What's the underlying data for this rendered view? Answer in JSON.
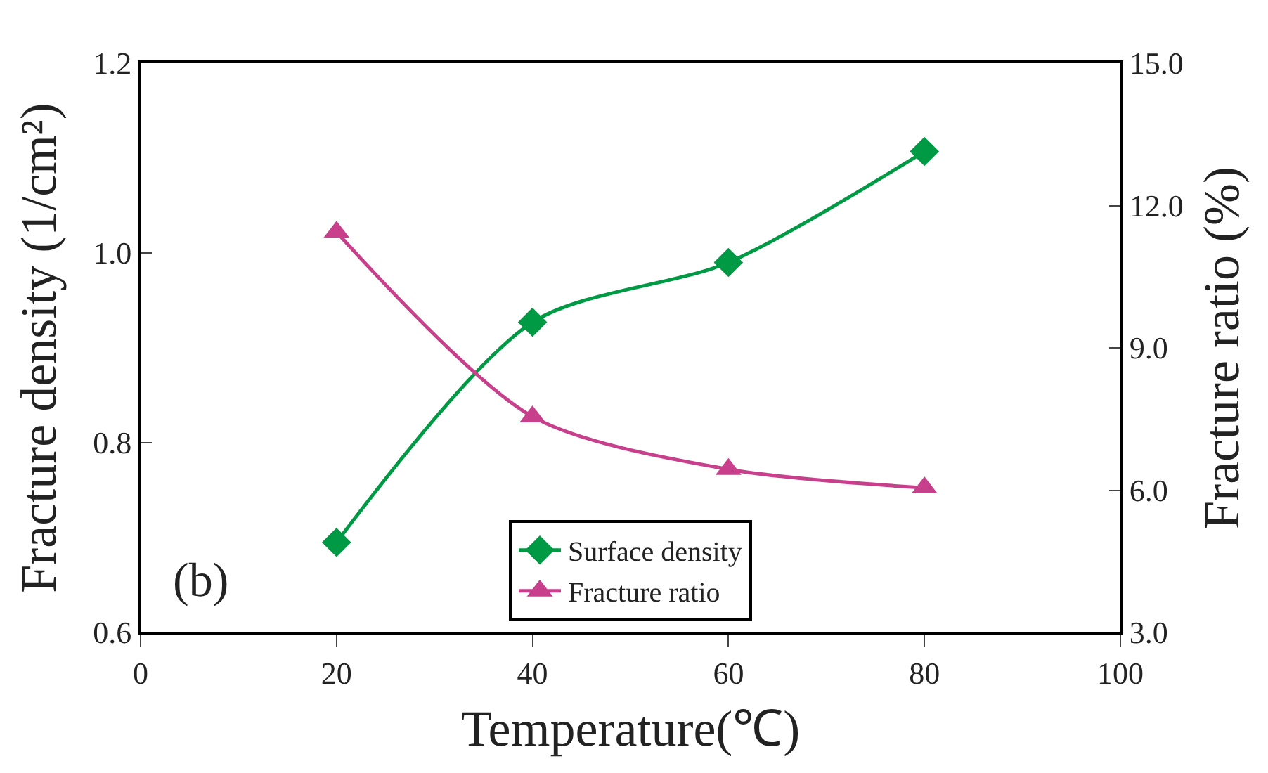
{
  "chart_data": {
    "type": "line",
    "xlabel": "Temperature(℃)",
    "ylabel": "Fracture density (1/cm²)",
    "y2label": "Fracture ratio (%)",
    "x": [
      20,
      40,
      60,
      80
    ],
    "series": [
      {
        "name": "Surface density",
        "color": "#009a44",
        "values": [
          0.695,
          0.927,
          0.99,
          1.107
        ],
        "marker": "diamond"
      },
      {
        "name": "Fracture ratio",
        "color": "#c8408c",
        "values": [
          11.44,
          7.55,
          6.44,
          6.05
        ],
        "marker": "triangle",
        "axis": "y2"
      }
    ],
    "xlim": [
      0,
      100
    ],
    "xticks": [
      0,
      20,
      40,
      60,
      80,
      100
    ],
    "ylim": [
      0.6,
      1.2
    ],
    "yticks": [
      {
        "value": 0.6,
        "label": "0.6"
      },
      {
        "value": 0.8,
        "label": "0.8"
      },
      {
        "value": 1.0,
        "label": "1.0"
      },
      {
        "value": 1.2,
        "label": "1.2"
      }
    ],
    "y2lim": [
      3,
      15
    ],
    "y2ticks": [
      {
        "value": 3,
        "label": "3.0"
      },
      {
        "value": 6,
        "label": "6.0"
      },
      {
        "value": 9,
        "label": "9.0"
      },
      {
        "value": 12,
        "label": "12.0"
      },
      {
        "value": 15,
        "label": "15.0"
      }
    ],
    "annotations": [
      "(b)"
    ],
    "legend": "bottom"
  }
}
